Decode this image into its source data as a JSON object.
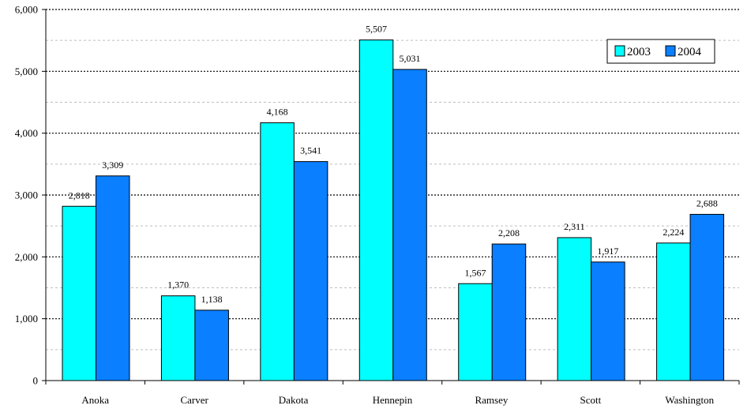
{
  "chart_data": {
    "type": "bar",
    "title": "",
    "xlabel": "",
    "ylabel": "",
    "categories": [
      "Anoka",
      "Carver",
      "Dakota",
      "Hennepin",
      "Ramsey",
      "Scott",
      "Washington"
    ],
    "series": [
      {
        "name": "2003",
        "color": "#00ffff",
        "values": [
          2818,
          1370,
          4168,
          5507,
          1567,
          2311,
          2224
        ]
      },
      {
        "name": "2004",
        "color": "#0a7fff",
        "values": [
          3309,
          1138,
          3541,
          5031,
          2208,
          1917,
          2688
        ]
      }
    ],
    "data_labels": [
      [
        "2,818",
        "1,370",
        "4,168",
        "5,507",
        "1,567",
        "2,311",
        "2,224"
      ],
      [
        "3,309",
        "1,138",
        "3,541",
        "5,031",
        "2,208",
        "1,917",
        "2,688"
      ]
    ],
    "ylim": [
      0,
      6000
    ],
    "yticks": [
      0,
      1000,
      2000,
      3000,
      4000,
      5000,
      6000
    ],
    "ytick_labels": [
      "0",
      "1,000",
      "2,000",
      "3,000",
      "4,000",
      "5,000",
      "6,000"
    ],
    "grid": true,
    "legend_position": "top-right"
  }
}
